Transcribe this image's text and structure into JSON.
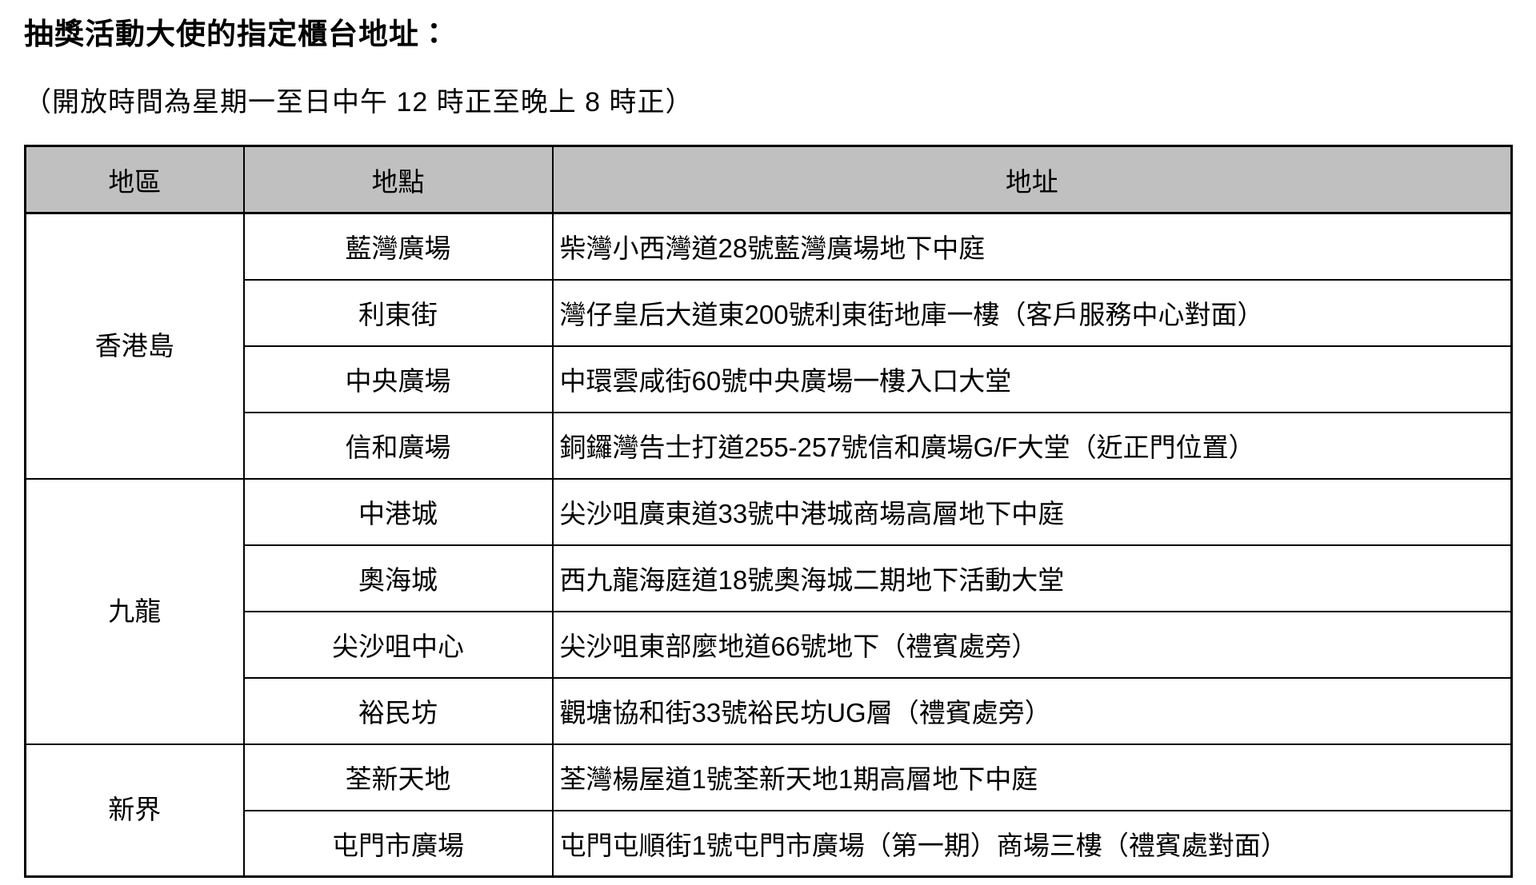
{
  "page": {
    "title": "抽獎活動大使的指定櫃台地址：",
    "subtitle": "（開放時間為星期一至日中午 12 時正至晚上 8 時正）"
  },
  "table": {
    "header_bg": "#c0c0c0",
    "border_color": "#000000",
    "headers": {
      "region": "地區",
      "location": "地點",
      "address": "地址"
    },
    "groups": [
      {
        "region": "香港島",
        "rows": [
          {
            "location": "藍灣廣場",
            "address": "柴灣小西灣道28號藍灣廣場地下中庭"
          },
          {
            "location": "利東街",
            "address": "灣仔皇后大道東200號利東街地庫一樓（客戶服務中心對面）"
          },
          {
            "location": "中央廣場",
            "address": "中環雲咸街60號中央廣場一樓入口大堂"
          },
          {
            "location": "信和廣場",
            "address": "銅鑼灣告士打道255-257號信和廣場G/F大堂（近正門位置）"
          }
        ]
      },
      {
        "region": "九龍",
        "rows": [
          {
            "location": "中港城",
            "address": "尖沙咀廣東道33號中港城商場高層地下中庭"
          },
          {
            "location": "奧海城",
            "address": "西九龍海庭道18號奧海城二期地下活動大堂"
          },
          {
            "location": "尖沙咀中心",
            "address": "尖沙咀東部麼地道66號地下（禮賓處旁）"
          },
          {
            "location": "裕民坊",
            "address": "觀塘協和街33號裕民坊UG層（禮賓處旁）"
          }
        ]
      },
      {
        "region": "新界",
        "rows": [
          {
            "location": "荃新天地",
            "address": "荃灣楊屋道1號荃新天地1期高層地下中庭"
          },
          {
            "location": "屯門市廣場",
            "address": "屯門屯順街1號屯門市廣場（第一期）商場三樓（禮賓處對面）"
          }
        ]
      }
    ]
  }
}
